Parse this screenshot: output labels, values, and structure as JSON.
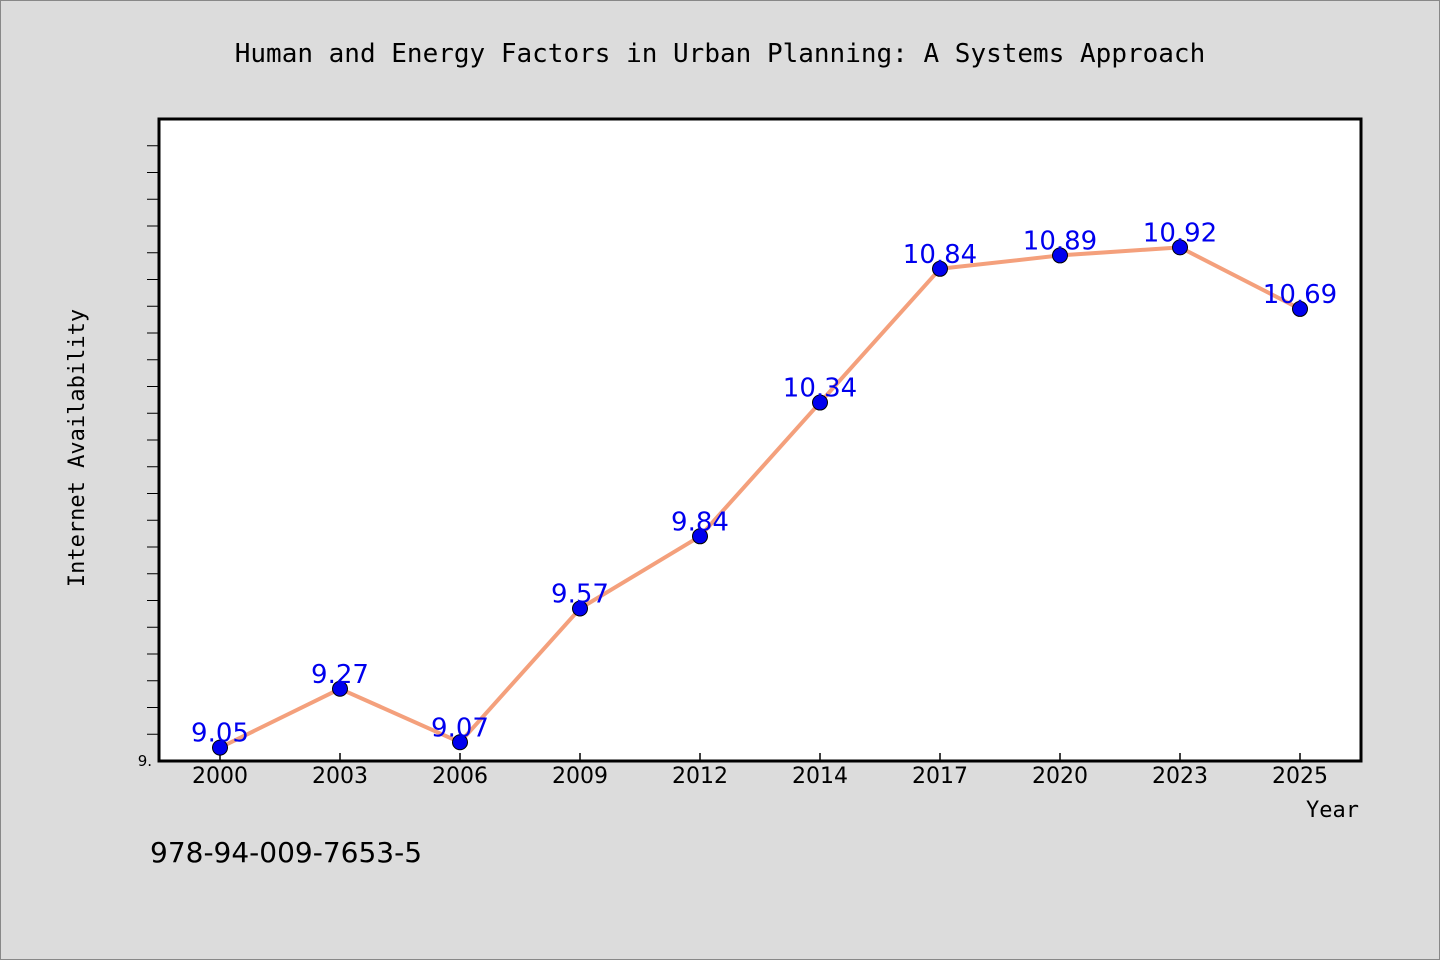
{
  "chart_data": {
    "type": "line",
    "title": "Human and Energy Factors in Urban Planning: A Systems Approach",
    "xlabel": "Year",
    "ylabel": "Internet Availability",
    "categories": [
      "2000",
      "2003",
      "2006",
      "2009",
      "2012",
      "2014",
      "2017",
      "2020",
      "2023",
      "2025"
    ],
    "series": [
      {
        "values": [
          9.05,
          9.27,
          9.07,
          9.57,
          9.84,
          10.34,
          10.84,
          10.89,
          10.92,
          10.69
        ]
      }
    ],
    "data_labels": [
      "9.05",
      "9.27",
      "9.07",
      "9.57",
      "9.84",
      "10.34",
      "10.84",
      "10.89",
      "10.92",
      "10.69"
    ],
    "y_tick_label": "9.",
    "ylim": [
      9.0,
      11.4
    ],
    "grid": false,
    "legend": "none",
    "colors": {
      "background": "#dcdcdc",
      "plot_background": "#ffffff",
      "line": "#f4a07c",
      "marker": "#0000ee",
      "data_label": "#0000ee"
    }
  },
  "footer": {
    "code": "978-94-009-7653-5"
  }
}
